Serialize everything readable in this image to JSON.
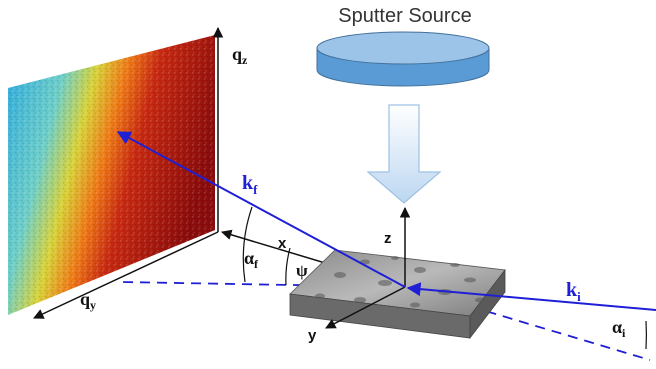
{
  "source_label": "Sputter Source",
  "axes": {
    "qz": {
      "main": "q",
      "sub": "z"
    },
    "qy": {
      "main": "q",
      "sub": "y"
    },
    "x": "x",
    "y": "y",
    "z": "z"
  },
  "vectors": {
    "kf": {
      "main": "k",
      "sub": "f"
    },
    "ki": {
      "main": "k",
      "sub": "i"
    }
  },
  "angles": {
    "alpha_f": {
      "main": "α",
      "sub": "f"
    },
    "alpha_i": {
      "main": "α",
      "sub": "i"
    },
    "psi": "ψ"
  },
  "colors": {
    "beam": "#1f1fd6",
    "axis": "#111111",
    "source_top": "#9cc3e8",
    "source_side": "#5b9bd5",
    "arrow_fill": "#cfe3f6"
  }
}
